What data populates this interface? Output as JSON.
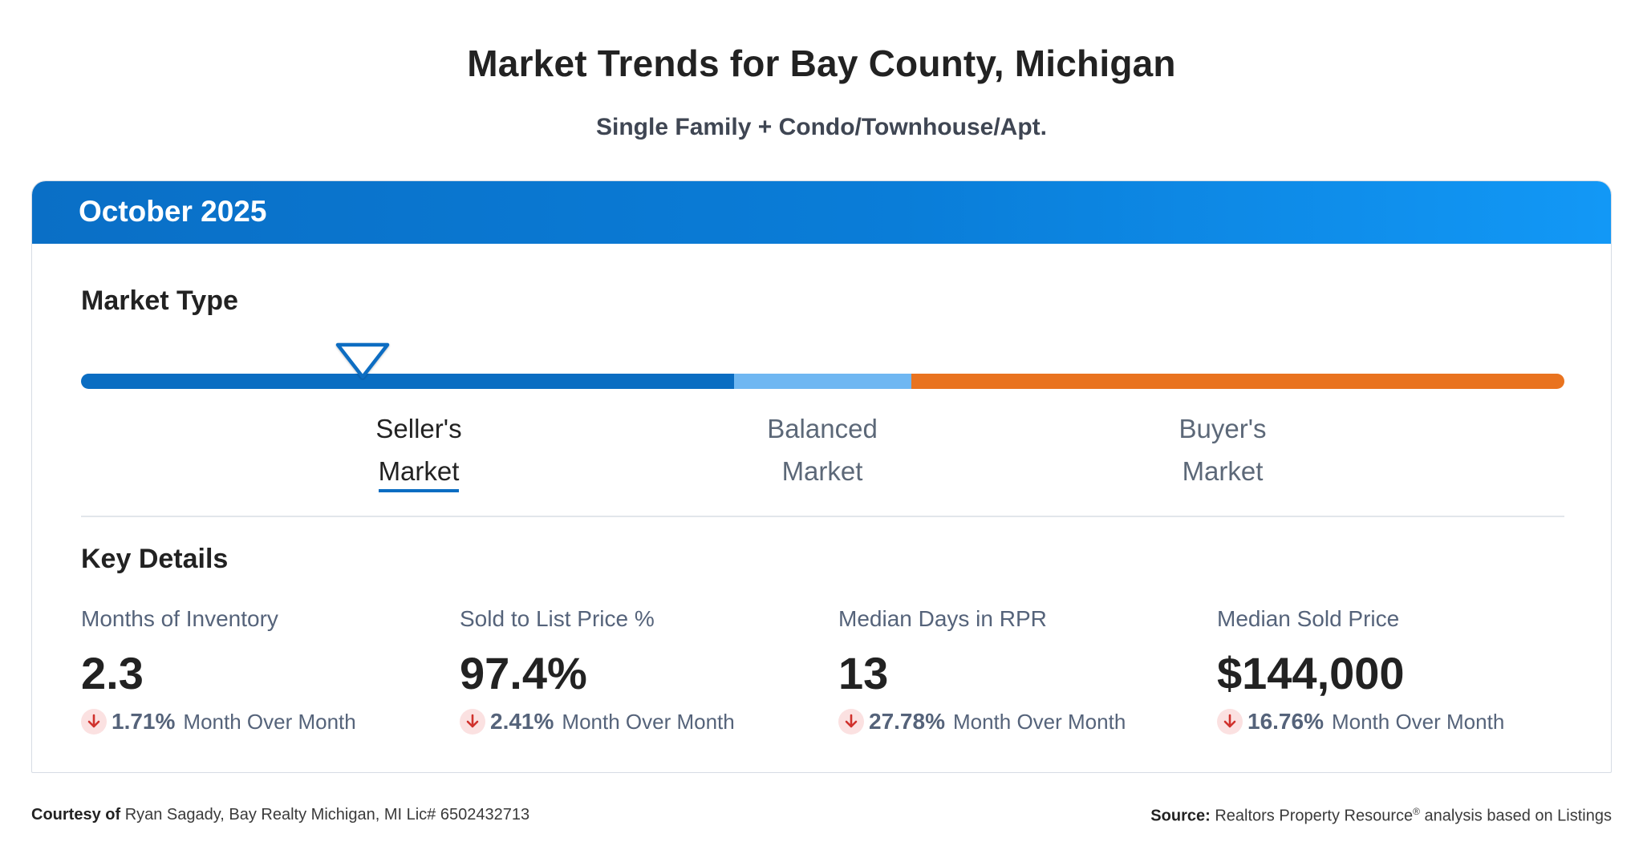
{
  "header": {
    "title": "Market Trends for Bay County, Michigan",
    "subtitle": "Single Family + Condo/Townhouse/Apt."
  },
  "card": {
    "period": "October 2025",
    "market_type": {
      "title": "Market Type",
      "selected": "Seller's Market",
      "indicator_position": 0.19,
      "segments": [
        {
          "name": "Seller's",
          "color": "#0a6dc2"
        },
        {
          "name": "Balanced",
          "color": "#6fb7f2"
        },
        {
          "name": "Buyer's",
          "color": "#e9731f"
        }
      ],
      "labels": [
        {
          "line1": "Seller's",
          "line2": "Market"
        },
        {
          "line1": "Balanced",
          "line2": "Market"
        },
        {
          "line1": "Buyer's",
          "line2": "Market"
        }
      ]
    },
    "key_details": {
      "title": "Key Details",
      "metrics": [
        {
          "label": "Months of Inventory",
          "value": "2.3",
          "change_pct": "1.71%",
          "change_text": "Month Over Month",
          "direction": "down"
        },
        {
          "label": "Sold to List Price %",
          "value": "97.4%",
          "change_pct": "2.41%",
          "change_text": "Month Over Month",
          "direction": "down"
        },
        {
          "label": "Median Days in RPR",
          "value": "13",
          "change_pct": "27.78%",
          "change_text": "Month Over Month",
          "direction": "down"
        },
        {
          "label": "Median Sold Price",
          "value": "$144,000",
          "change_pct": "16.76%",
          "change_text": "Month Over Month",
          "direction": "down"
        }
      ]
    }
  },
  "footer": {
    "courtesy_label": "Courtesy of",
    "courtesy_text": "Ryan Sagady, Bay Realty Michigan, MI Lic# 6502432713",
    "source_label": "Source:",
    "source_text_1": "Realtors Property Resource",
    "source_sup": "®",
    "source_text_2": "analysis based on Listings"
  },
  "colors": {
    "header_blue": "#0a7dd8",
    "down_arrow": "#d0322d",
    "down_bg": "#fbe1e1"
  },
  "icons": {
    "marker": "down-triangle-outline",
    "change": "arrow-down-icon"
  }
}
